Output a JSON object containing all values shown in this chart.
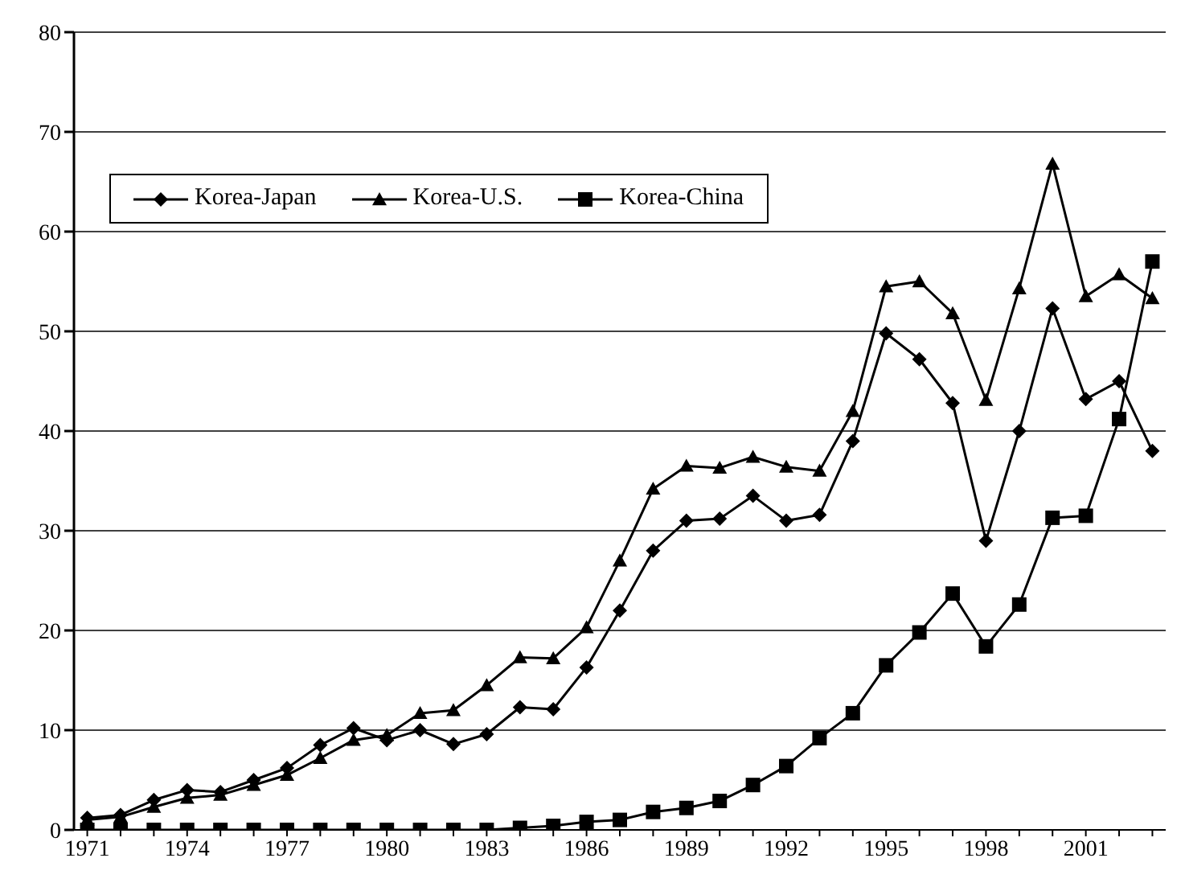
{
  "chart_data": {
    "type": "line",
    "categories": [
      "1971",
      null,
      null,
      "1974",
      null,
      null,
      "1977",
      null,
      null,
      "1980",
      null,
      null,
      "1983",
      null,
      null,
      "1986",
      null,
      null,
      "1989",
      null,
      null,
      "1992",
      null,
      null,
      "1995",
      null,
      null,
      "1998",
      null,
      null,
      "2001",
      null,
      null
    ],
    "series": [
      {
        "name": "Korea-Japan",
        "color": "#000000",
        "marker": "diamond",
        "values": [
          1.2,
          1.5,
          3.0,
          4.0,
          3.8,
          5.0,
          6.2,
          8.5,
          10.2,
          9.0,
          10.0,
          8.6,
          9.6,
          12.3,
          12.1,
          16.3,
          22.0,
          28.0,
          31.0,
          31.2,
          33.5,
          31.0,
          31.6,
          39.0,
          49.8,
          47.2,
          42.8,
          29.0,
          40.0,
          52.3,
          43.2,
          45.0,
          38.0
        ]
      },
      {
        "name": "Korea-U.S.",
        "color": "#000000",
        "marker": "triangle",
        "values": [
          1.0,
          1.3,
          2.3,
          3.2,
          3.5,
          4.5,
          5.5,
          7.2,
          9.0,
          9.5,
          11.7,
          12.0,
          14.5,
          17.3,
          17.2,
          20.3,
          27.0,
          34.2,
          36.5,
          36.3,
          37.4,
          36.4,
          36.0,
          42.0,
          54.5,
          55.0,
          51.8,
          43.1,
          54.3,
          66.8,
          53.5,
          55.7,
          53.3
        ]
      },
      {
        "name": "Korea-China",
        "color": "#000000",
        "marker": "square",
        "values": [
          0,
          0,
          0,
          0,
          0,
          0,
          0,
          0,
          0,
          0,
          0,
          0,
          0,
          0.2,
          0.4,
          0.8,
          1.0,
          1.8,
          2.2,
          2.9,
          4.5,
          6.4,
          9.2,
          11.7,
          16.5,
          19.8,
          23.7,
          18.4,
          22.6,
          31.3,
          31.5,
          41.2,
          57.0
        ]
      }
    ],
    "ylim": [
      0,
      80
    ],
    "yticks": [
      0,
      10,
      20,
      30,
      40,
      50,
      60,
      70,
      80
    ],
    "grid": "y",
    "legend": "top left",
    "line_style": "solid"
  }
}
